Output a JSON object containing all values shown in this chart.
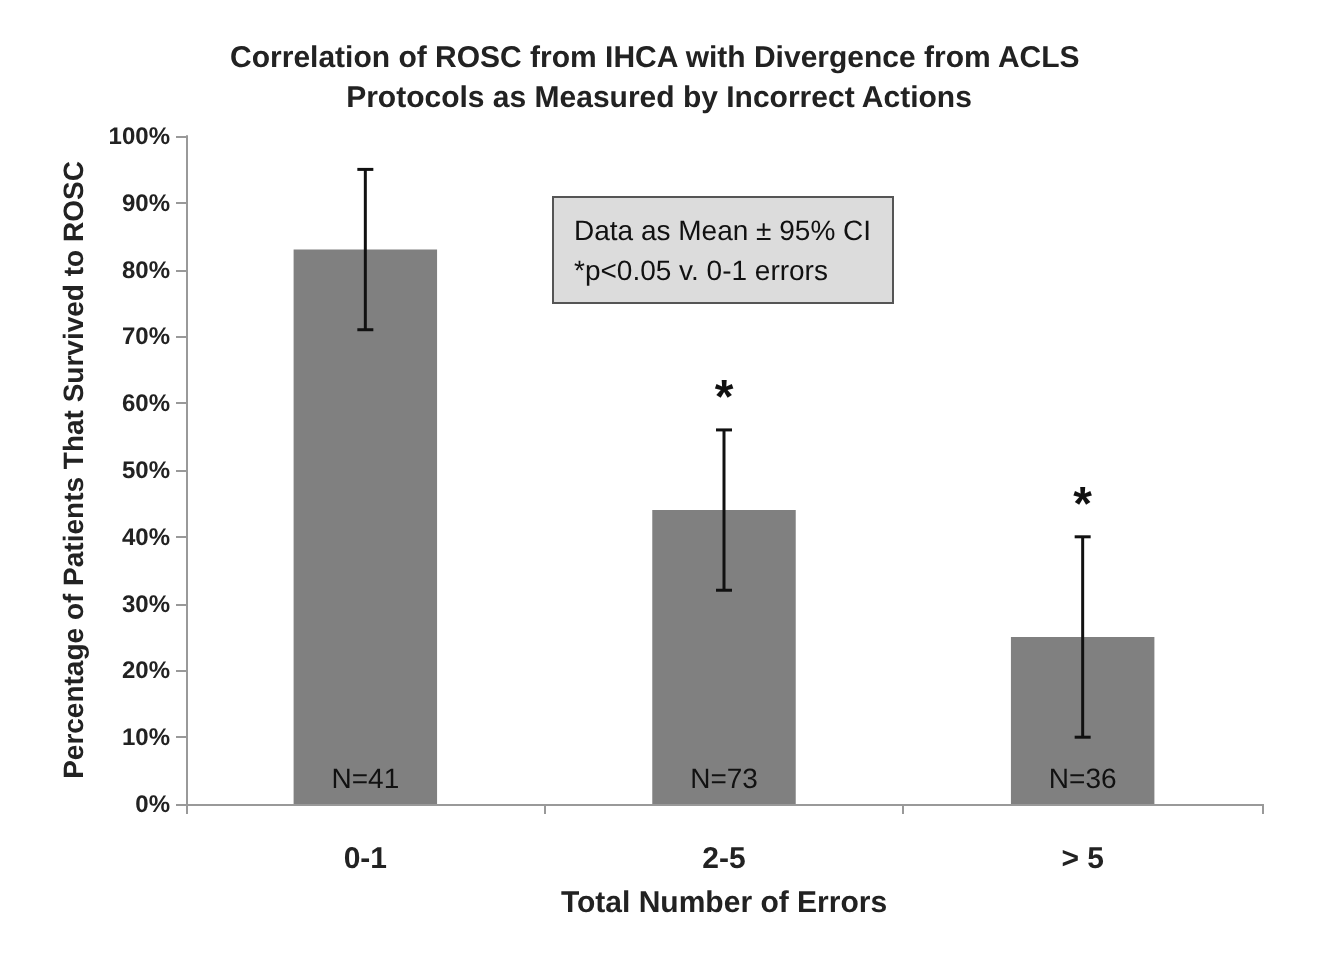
{
  "chart_data": {
    "type": "bar",
    "title": "Correlation of ROSC from IHCA with Divergence from ACLS Protocols as Measured by Incorrect Actions",
    "xlabel": "Total Number of Errors",
    "ylabel": "Percentage of Patients That Survived to ROSC",
    "categories": [
      "0-1",
      "2-5",
      "> 5"
    ],
    "values": [
      83,
      44,
      25
    ],
    "color": "#808080",
    "errors": [
      [
        71,
        95
      ],
      [
        32,
        56
      ],
      [
        10,
        40
      ]
    ],
    "ylim": [
      0,
      100
    ],
    "yticks": [
      {
        "value": 0,
        "label": "0%"
      },
      {
        "value": 10,
        "label": "10%"
      },
      {
        "value": 20,
        "label": "20%"
      },
      {
        "value": 30,
        "label": "30%"
      },
      {
        "value": 40,
        "label": "40%"
      },
      {
        "value": 50,
        "label": "50%"
      },
      {
        "value": 60,
        "label": "60%"
      },
      {
        "value": 70,
        "label": "70%"
      },
      {
        "value": 80,
        "label": "80%"
      },
      {
        "value": 90,
        "label": "90%"
      },
      {
        "value": 100,
        "label": "100%"
      }
    ],
    "grid": false,
    "annotations": [
      "Data as Mean ± 95% CI",
      "*p<0.05 v. 0-1 errors",
      "N=41",
      "N=73",
      "N=36",
      "*",
      "*"
    ]
  }
}
